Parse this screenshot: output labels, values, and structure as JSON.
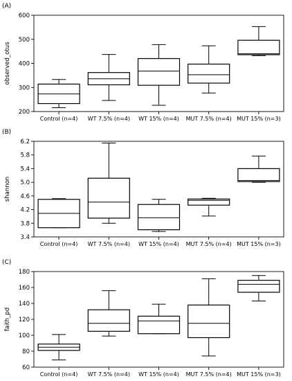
{
  "chart_data": [
    {
      "type": "box",
      "panel_label": "(A)",
      "ylabel": "observed_otus",
      "xlabel": "",
      "ylim": [
        200,
        600
      ],
      "yticks": [
        200,
        300,
        400,
        500,
        600
      ],
      "categories": [
        "Control (n=4)",
        "WT 7.5% (n=4)",
        "WT 15% (n=4)",
        "MUT 7.5% (n=4)",
        "MUT 15% (n=3)"
      ],
      "boxes": [
        {
          "min": 216,
          "q1": 233,
          "median": 273,
          "q3": 314,
          "max": 333
        },
        {
          "min": 246,
          "q1": 311,
          "median": 336,
          "q3": 362,
          "max": 437
        },
        {
          "min": 226,
          "q1": 309,
          "median": 368,
          "q3": 420,
          "max": 478
        },
        {
          "min": 277,
          "q1": 318,
          "median": 353,
          "q3": 397,
          "max": 473
        },
        {
          "min": 432,
          "q1": 436,
          "median": 440,
          "q3": 496,
          "max": 553
        }
      ]
    },
    {
      "type": "box",
      "panel_label": "(B)",
      "ylabel": "shannon",
      "xlabel": "",
      "ylim": [
        3.4,
        6.2
      ],
      "yticks": [
        3.4,
        3.8,
        4.2,
        4.6,
        5.0,
        5.4,
        5.8,
        6.2
      ],
      "ytick_labels": [
        "3.4",
        "3.8",
        "4.2",
        "4.6",
        "5.0",
        "5.4",
        "5.8",
        "6.2"
      ],
      "categories": [
        "Control (n=4)",
        "WT 7.5% (n=4)",
        "WT 15% (n=4)",
        "MUT 7.5% (n=4)",
        "MUT 15% (n=3)"
      ],
      "boxes": [
        {
          "min": 3.67,
          "q1": 3.67,
          "median": 4.09,
          "q3": 4.5,
          "max": 4.52
        },
        {
          "min": 3.8,
          "q1": 3.95,
          "median": 4.42,
          "q3": 5.12,
          "max": 6.15
        },
        {
          "min": 3.56,
          "q1": 3.61,
          "median": 3.96,
          "q3": 4.35,
          "max": 4.5
        },
        {
          "min": 4.01,
          "q1": 4.33,
          "median": 4.47,
          "q3": 4.51,
          "max": 4.53
        },
        {
          "min": 5.0,
          "q1": 5.02,
          "median": 5.05,
          "q3": 5.4,
          "max": 5.77
        }
      ]
    },
    {
      "type": "box",
      "panel_label": "(C)",
      "ylabel": "faith_pd",
      "xlabel": "",
      "ylim": [
        60,
        180
      ],
      "yticks": [
        60,
        80,
        100,
        120,
        140,
        160,
        180
      ],
      "categories": [
        "Control (n=4)",
        "WT 7.5% (n=4)",
        "WT 15% (n=4)",
        "MUT 7.5% (n=4)",
        "MUT 15% (n=3)"
      ],
      "boxes": [
        {
          "min": 69,
          "q1": 81,
          "median": 85,
          "q3": 89,
          "max": 101
        },
        {
          "min": 99,
          "q1": 105,
          "median": 115,
          "q3": 132,
          "max": 156
        },
        {
          "min": 102,
          "q1": 102,
          "median": 118,
          "q3": 124,
          "max": 139
        },
        {
          "min": 74,
          "q1": 97,
          "median": 115,
          "q3": 138,
          "max": 171
        },
        {
          "min": 143,
          "q1": 154,
          "median": 164,
          "q3": 169,
          "max": 175
        }
      ]
    }
  ]
}
